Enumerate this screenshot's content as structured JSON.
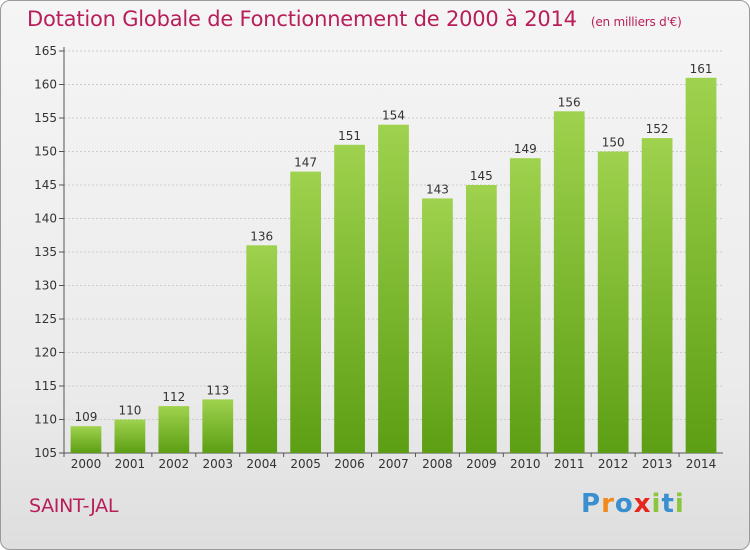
{
  "header": {
    "title": "Dotation Globale de Fonctionnement de 2000 à 2014",
    "unit_note": "(en milliers d'€)"
  },
  "commune_label": "SAINT-JAL",
  "brand": {
    "logo_letters": [
      "P",
      "r",
      "o",
      "x",
      "i",
      "t",
      "i"
    ],
    "logo_colors": [
      "#3a8fd0",
      "#f08a1c",
      "#3a8fd0",
      "#e4261c",
      "#8cc63e",
      "#3a8fd0",
      "#8cc63e"
    ]
  },
  "colors": {
    "bar_top": "#9fd24e",
    "bar_bottom": "#5c9e14",
    "axis_text": "#333333",
    "grid": "#cccccc"
  },
  "chart_data": {
    "type": "bar",
    "categories": [
      "2000",
      "2001",
      "2002",
      "2003",
      "2004",
      "2005",
      "2006",
      "2007",
      "2008",
      "2009",
      "2010",
      "2011",
      "2012",
      "2013",
      "2014"
    ],
    "values": [
      109,
      110,
      112,
      113,
      136,
      147,
      151,
      154,
      143,
      145,
      149,
      156,
      150,
      152,
      161
    ],
    "data_labels": [
      "109",
      "110",
      "112",
      "113",
      "136",
      "147",
      "151",
      "154",
      "143",
      "145",
      "149",
      "156",
      "150",
      "152",
      "161"
    ],
    "y_ticks": [
      105,
      110,
      115,
      120,
      125,
      130,
      135,
      140,
      145,
      150,
      155,
      160,
      165
    ],
    "y_tick_labels": [
      "105",
      "110",
      "115",
      "120",
      "125",
      "130",
      "135",
      "140",
      "145",
      "150",
      "155",
      "160",
      "165"
    ],
    "ylim": [
      105,
      165
    ],
    "grid": true,
    "legend": "none"
  }
}
